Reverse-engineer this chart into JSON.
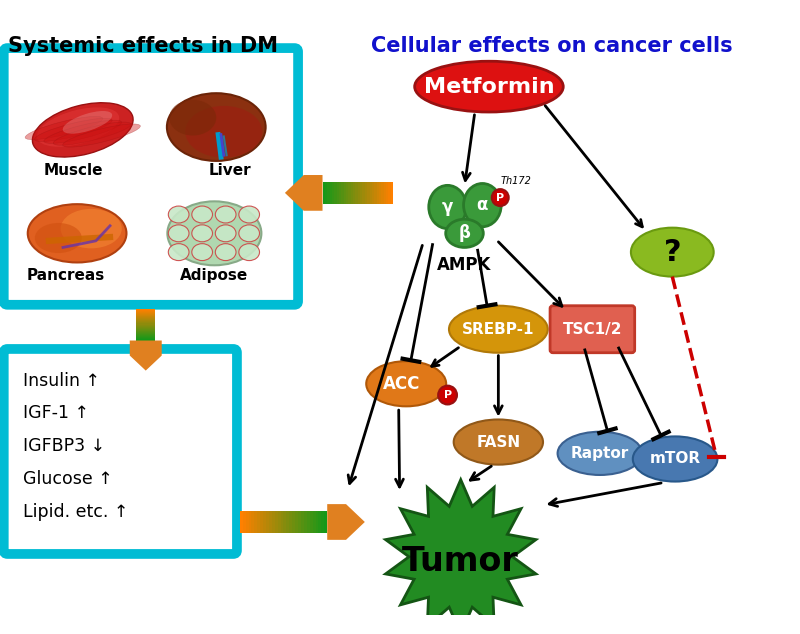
{
  "title_left": "Systemic effects in DM",
  "title_right": "Cellular effects on cancer cells",
  "background_color": "#ffffff",
  "cyan_border_color": "#00bcd4",
  "organ_labels": [
    "Muscle",
    "Liver",
    "Pancreas",
    "Adipose"
  ],
  "text_box_lines": [
    "Insulin ↑",
    "IGF-1 ↑",
    "IGFBP3 ↓",
    "Glucose ↑",
    "Lipid. etc. ↑"
  ],
  "metformin_color": "#dd1111",
  "ampk_green": "#3a9a3a",
  "ampk_green2": "#2a7a2a",
  "acc_color": "#e07818",
  "srebp_color": "#d4950a",
  "fasn_color": "#c07828",
  "raptor_color": "#6090c0",
  "mtor_color": "#4878b0",
  "tsc_color_top": "#e06050",
  "tsc_color_bot": "#d84030",
  "question_color": "#8aba20",
  "tumor_color": "#228B22",
  "phospho_color": "#cc0000",
  "orange_color": "#e08020",
  "red_dashed_color": "#cc0000"
}
